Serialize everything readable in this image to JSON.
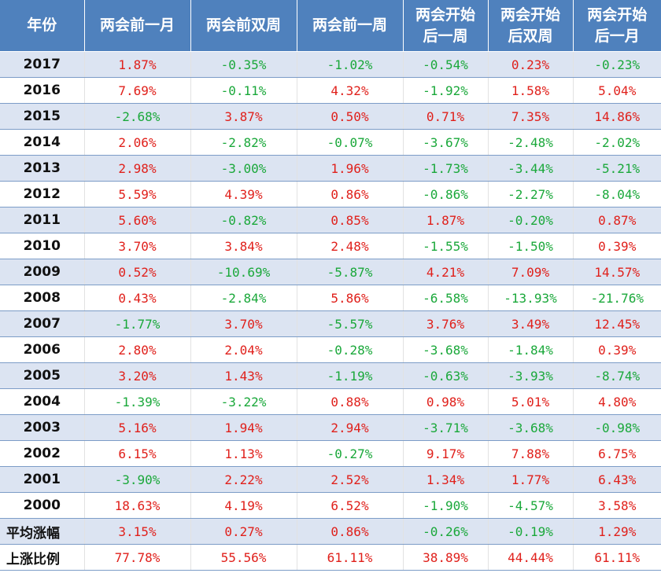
{
  "chart_data": {
    "type": "table",
    "columns": [
      "年份",
      "两会前一月",
      "两会前双周",
      "两会前一周",
      "两会开始\n后一周",
      "两会开始\n后双周",
      "两会开始\n后一月"
    ],
    "rows": [
      [
        "2017",
        "1.87%",
        "-0.35%",
        "-1.02%",
        "-0.54%",
        "0.23%",
        "-0.23%"
      ],
      [
        "2016",
        "7.69%",
        "-0.11%",
        "4.32%",
        "-1.92%",
        "1.58%",
        "5.04%"
      ],
      [
        "2015",
        "-2.68%",
        "3.87%",
        "0.50%",
        "0.71%",
        "7.35%",
        "14.86%"
      ],
      [
        "2014",
        "2.06%",
        "-2.82%",
        "-0.07%",
        "-3.67%",
        "-2.48%",
        "-2.02%"
      ],
      [
        "2013",
        "2.98%",
        "-3.00%",
        "1.96%",
        "-1.73%",
        "-3.44%",
        "-5.21%"
      ],
      [
        "2012",
        "5.59%",
        "4.39%",
        "0.86%",
        "-0.86%",
        "-2.27%",
        "-8.04%"
      ],
      [
        "2011",
        "5.60%",
        "-0.82%",
        "0.85%",
        "1.87%",
        "-0.20%",
        "0.87%"
      ],
      [
        "2010",
        "3.70%",
        "3.84%",
        "2.48%",
        "-1.55%",
        "-1.50%",
        "0.39%"
      ],
      [
        "2009",
        "0.52%",
        "-10.69%",
        "-5.87%",
        "4.21%",
        "7.09%",
        "14.57%"
      ],
      [
        "2008",
        "0.43%",
        "-2.84%",
        "5.86%",
        "-6.58%",
        "-13.93%",
        "-21.76%"
      ],
      [
        "2007",
        "-1.77%",
        "3.70%",
        "-5.57%",
        "3.76%",
        "3.49%",
        "12.45%"
      ],
      [
        "2006",
        "2.80%",
        "2.04%",
        "-0.28%",
        "-3.68%",
        "-1.84%",
        "0.39%"
      ],
      [
        "2005",
        "3.20%",
        "1.43%",
        "-1.19%",
        "-0.63%",
        "-3.93%",
        "-8.74%"
      ],
      [
        "2004",
        "-1.39%",
        "-3.22%",
        "0.88%",
        "0.98%",
        "5.01%",
        "4.80%"
      ],
      [
        "2003",
        "5.16%",
        "1.94%",
        "2.94%",
        "-3.71%",
        "-3.68%",
        "-0.98%"
      ],
      [
        "2002",
        "6.15%",
        "1.13%",
        "-0.27%",
        "9.17%",
        "7.88%",
        "6.75%"
      ],
      [
        "2001",
        "-3.90%",
        "2.22%",
        "2.52%",
        "1.34%",
        "1.77%",
        "6.43%"
      ],
      [
        "2000",
        "18.63%",
        "4.19%",
        "6.52%",
        "-1.90%",
        "-4.57%",
        "3.58%"
      ],
      [
        "平均涨幅",
        "3.15%",
        "0.27%",
        "0.86%",
        "-0.26%",
        "-0.19%",
        "1.29%"
      ],
      [
        "上涨比例",
        "77.78%",
        "55.56%",
        "61.11%",
        "38.89%",
        "44.44%",
        "61.11%"
      ]
    ]
  },
  "colors": {
    "header_bg": "#4f81bd",
    "header_text": "#ffffff",
    "row_alt_bg": "#dce4f2",
    "positive": "#e0201b",
    "negative": "#1aa83a"
  }
}
